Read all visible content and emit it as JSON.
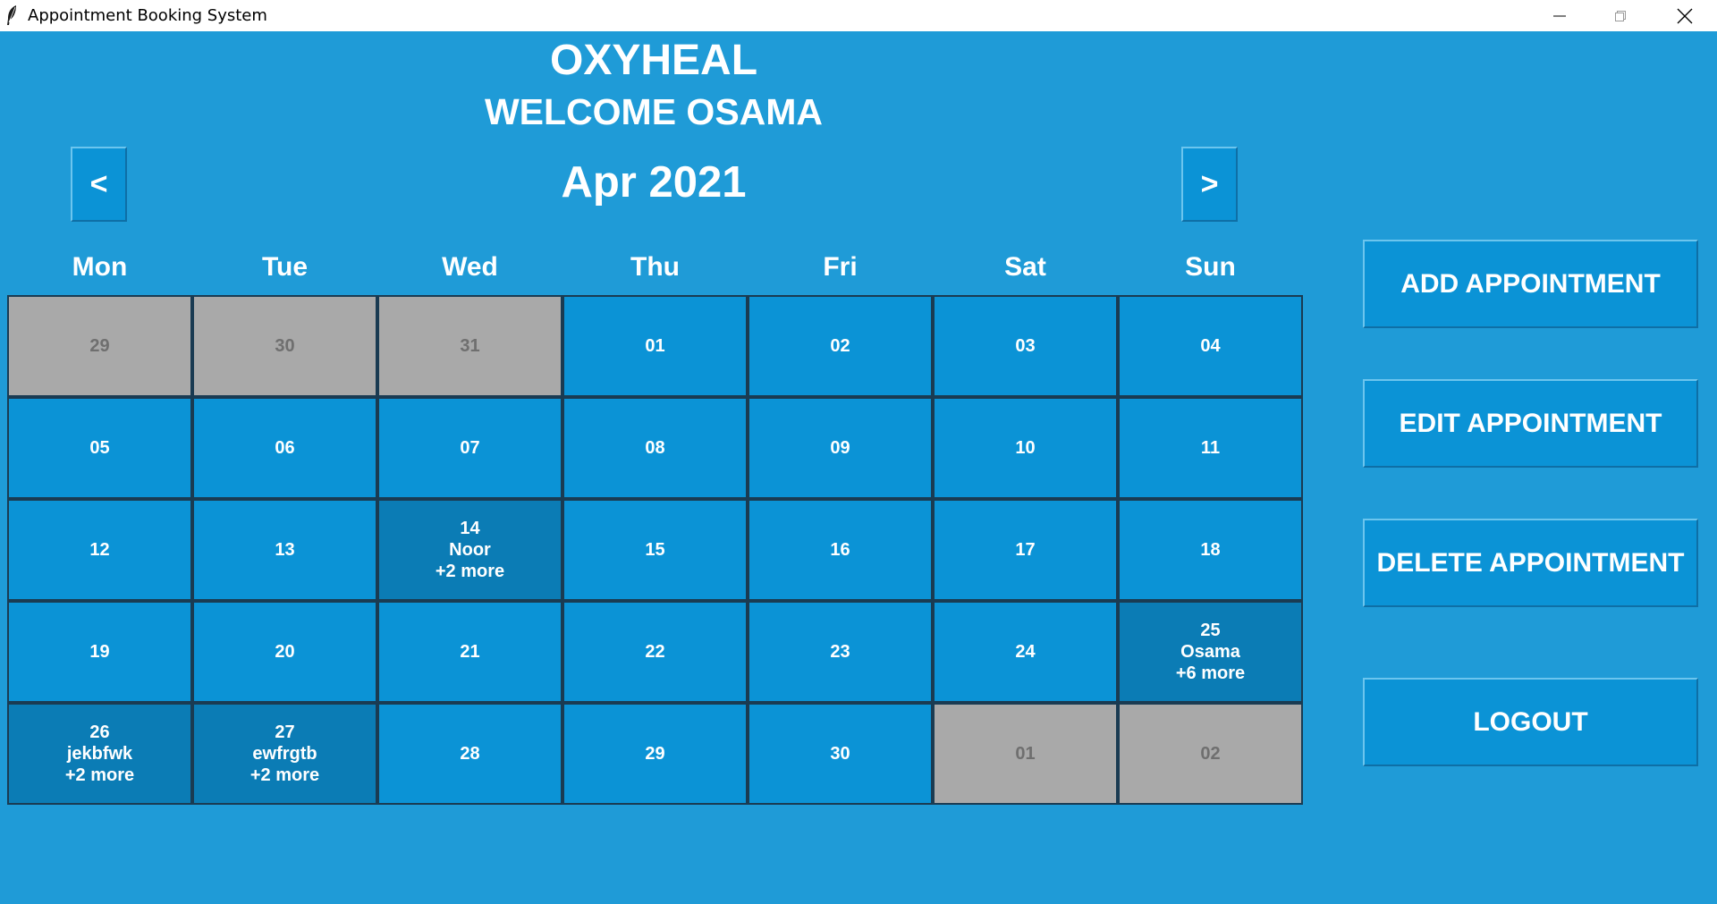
{
  "window": {
    "title": "Appointment Booking System"
  },
  "header": {
    "brand": "OXYHEAL",
    "welcome": "WELCOME OSAMA"
  },
  "nav": {
    "prev_label": "<",
    "month_label": "Apr 2021",
    "next_label": ">"
  },
  "weekdays": [
    "Mon",
    "Tue",
    "Wed",
    "Thu",
    "Fri",
    "Sat",
    "Sun"
  ],
  "weeks": [
    [
      {
        "day": "29",
        "other": true
      },
      {
        "day": "30",
        "other": true
      },
      {
        "day": "31",
        "other": true
      },
      {
        "day": "01"
      },
      {
        "day": "02"
      },
      {
        "day": "03"
      },
      {
        "day": "04"
      }
    ],
    [
      {
        "day": "05"
      },
      {
        "day": "06"
      },
      {
        "day": "07"
      },
      {
        "day": "08"
      },
      {
        "day": "09"
      },
      {
        "day": "10"
      },
      {
        "day": "11"
      }
    ],
    [
      {
        "day": "12"
      },
      {
        "day": "13"
      },
      {
        "day": "14",
        "name": "Noor",
        "more": "+2 more"
      },
      {
        "day": "15"
      },
      {
        "day": "16"
      },
      {
        "day": "17"
      },
      {
        "day": "18"
      }
    ],
    [
      {
        "day": "19"
      },
      {
        "day": "20"
      },
      {
        "day": "21"
      },
      {
        "day": "22"
      },
      {
        "day": "23"
      },
      {
        "day": "24"
      },
      {
        "day": "25",
        "name": "Osama",
        "more": "+6 more"
      }
    ],
    [
      {
        "day": "26",
        "name": "jekbfwk",
        "more": "+2 more"
      },
      {
        "day": "27",
        "name": "ewfrgtb",
        "more": "+2 more"
      },
      {
        "day": "28"
      },
      {
        "day": "29"
      },
      {
        "day": "30"
      },
      {
        "day": "01",
        "other": true
      },
      {
        "day": "02",
        "other": true
      }
    ]
  ],
  "actions": {
    "add": "ADD APPOINTMENT",
    "edit": "EDIT APPOINTMENT",
    "delete": "DELETE APPOINTMENT",
    "logout": "LOGOUT"
  },
  "icons": {
    "app": "feather-icon",
    "minimize": "minimize-icon",
    "maximize": "maximize-icon",
    "close": "close-icon"
  },
  "colors": {
    "background": "#1f9bd7",
    "cell": "#0b93d6",
    "cell_with_appointments": "#0b7cb5",
    "cell_other_month": "#a9a9a9"
  }
}
